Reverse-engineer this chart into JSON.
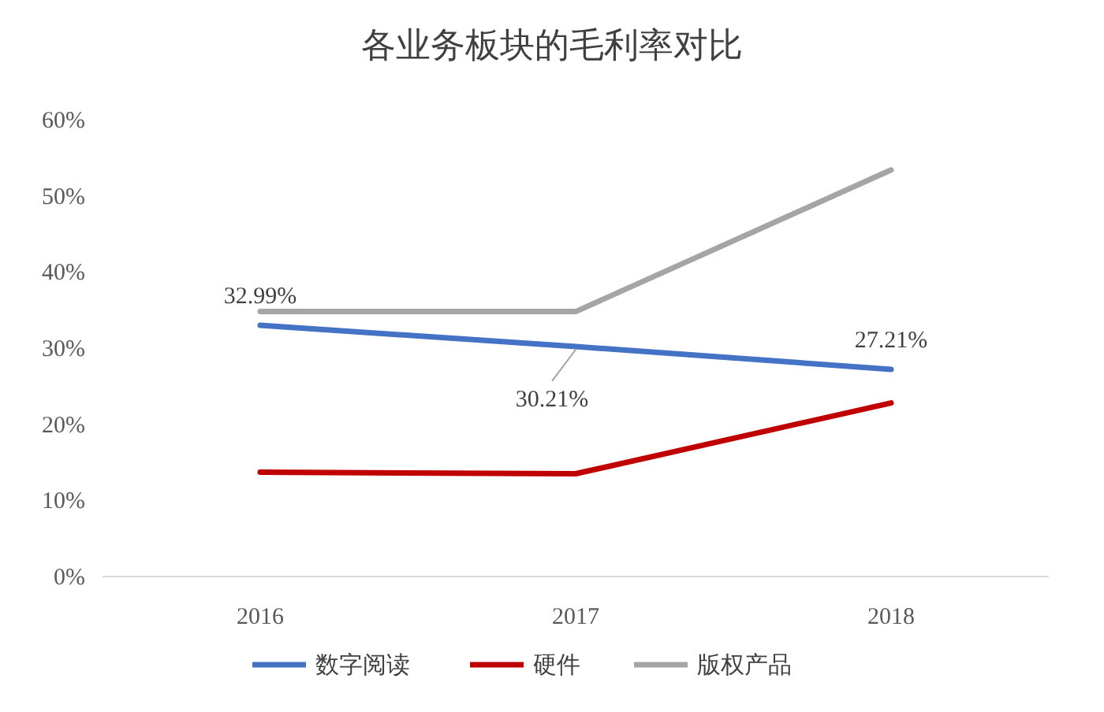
{
  "chart_data": {
    "type": "line",
    "title": "各业务板块的毛利率对比",
    "categories": [
      "2016",
      "2017",
      "2018"
    ],
    "series": [
      {
        "name": "数字阅读",
        "color": "#4472c4",
        "values": [
          32.99,
          30.21,
          27.21
        ],
        "value_labels": [
          "32.99%",
          "30.21%",
          "27.21%"
        ]
      },
      {
        "name": "硬件",
        "color": "#c00000",
        "values": [
          13.7,
          13.5,
          22.8
        ]
      },
      {
        "name": "版权产品",
        "color": "#a5a5a5",
        "values": [
          34.8,
          34.8,
          53.4
        ]
      }
    ],
    "ylim": [
      0,
      60
    ],
    "yticks": [
      {
        "value": 0,
        "label": "0%"
      },
      {
        "value": 10,
        "label": "10%"
      },
      {
        "value": 20,
        "label": "20%"
      },
      {
        "value": 30,
        "label": "30%"
      },
      {
        "value": 40,
        "label": "40%"
      },
      {
        "value": 50,
        "label": "50%"
      },
      {
        "value": 60,
        "label": "60%"
      }
    ],
    "grid": false,
    "legend": "bottom",
    "marker": "none",
    "line_style": "solid"
  }
}
